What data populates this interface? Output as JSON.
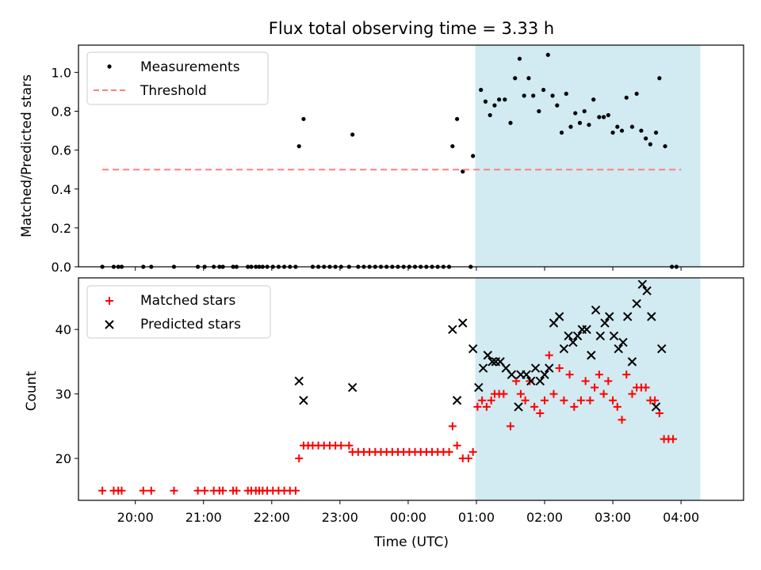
{
  "figure": {
    "title": "Flux total observing time = 3.33 h",
    "xlabel": "Time (UTC)",
    "highlight_color": "#add8e6"
  },
  "chart_data": [
    {
      "type": "scatter",
      "panel": "top",
      "ylabel": "Matched/Predicted stars",
      "xlim": [
        "19:10",
        "04:55"
      ],
      "ylim": [
        0,
        1.14
      ],
      "yticks": [
        0.0,
        0.2,
        0.4,
        0.6,
        0.8,
        1.0
      ],
      "ytick_labels": [
        "0.0",
        "0.2",
        "0.4",
        "0.6",
        "0.8",
        "1.0"
      ],
      "legend": "upper-left",
      "highlight_span": [
        "00:59",
        "04:17"
      ],
      "series": [
        {
          "name": "Measurements",
          "color": "#000000",
          "marker": "dot",
          "points": [
            [
              "19:31",
              0
            ],
            [
              "19:41",
              0
            ],
            [
              "19:45",
              0
            ],
            [
              "19:48",
              0
            ],
            [
              "20:07",
              0
            ],
            [
              "20:14",
              0
            ],
            [
              "20:34",
              0
            ],
            [
              "20:55",
              0
            ],
            [
              "21:01",
              0
            ],
            [
              "21:09",
              0
            ],
            [
              "21:14",
              0
            ],
            [
              "21:17",
              0
            ],
            [
              "21:26",
              0
            ],
            [
              "21:29",
              0
            ],
            [
              "21:39",
              0
            ],
            [
              "21:42",
              0
            ],
            [
              "21:46",
              0
            ],
            [
              "21:49",
              0
            ],
            [
              "21:52",
              0
            ],
            [
              "21:56",
              0
            ],
            [
              "22:01",
              0
            ],
            [
              "22:06",
              0
            ],
            [
              "22:11",
              0
            ],
            [
              "22:16",
              0
            ],
            [
              "22:21",
              0
            ],
            [
              "22:24",
              0.62
            ],
            [
              "22:28",
              0.76
            ],
            [
              "22:36",
              0
            ],
            [
              "22:41",
              0
            ],
            [
              "22:46",
              0
            ],
            [
              "22:51",
              0
            ],
            [
              "22:56",
              0
            ],
            [
              "23:01",
              0
            ],
            [
              "23:08",
              0
            ],
            [
              "23:11",
              0.68
            ],
            [
              "23:16",
              0
            ],
            [
              "23:21",
              0
            ],
            [
              "23:26",
              0
            ],
            [
              "23:31",
              0
            ],
            [
              "23:36",
              0
            ],
            [
              "23:41",
              0
            ],
            [
              "23:46",
              0
            ],
            [
              "23:51",
              0
            ],
            [
              "23:56",
              0
            ],
            [
              "00:01",
              0
            ],
            [
              "00:06",
              0
            ],
            [
              "00:11",
              0
            ],
            [
              "00:16",
              0
            ],
            [
              "00:21",
              0
            ],
            [
              "00:26",
              0
            ],
            [
              "00:31",
              0
            ],
            [
              "00:36",
              0
            ],
            [
              "00:39",
              0.62
            ],
            [
              "00:43",
              0.76
            ],
            [
              "00:48",
              0.49
            ],
            [
              "00:55",
              0
            ],
            [
              "00:57",
              0.57
            ],
            [
              "01:04",
              0.91
            ],
            [
              "01:08",
              0.85
            ],
            [
              "01:12",
              0.78
            ],
            [
              "01:16",
              0.83
            ],
            [
              "01:20",
              0.86
            ],
            [
              "01:25",
              0.86
            ],
            [
              "01:30",
              0.74
            ],
            [
              "01:34",
              0.97
            ],
            [
              "01:38",
              1.07
            ],
            [
              "01:42",
              0.88
            ],
            [
              "01:46",
              0.97
            ],
            [
              "01:50",
              0.88
            ],
            [
              "01:55",
              0.8
            ],
            [
              "01:59",
              0.91
            ],
            [
              "02:03",
              1.09
            ],
            [
              "02:07",
              0.88
            ],
            [
              "02:11",
              0.83
            ],
            [
              "02:15",
              0.69
            ],
            [
              "02:19",
              0.89
            ],
            [
              "02:23",
              0.72
            ],
            [
              "02:27",
              0.79
            ],
            [
              "02:31",
              0.74
            ],
            [
              "02:35",
              0.8
            ],
            [
              "02:39",
              0.73
            ],
            [
              "02:43",
              0.86
            ],
            [
              "02:48",
              0.77
            ],
            [
              "02:52",
              0.77
            ],
            [
              "02:56",
              0.78
            ],
            [
              "03:00",
              0.69
            ],
            [
              "03:04",
              0.72
            ],
            [
              "03:08",
              0.7
            ],
            [
              "03:12",
              0.87
            ],
            [
              "03:17",
              0.72
            ],
            [
              "03:21",
              0.89
            ],
            [
              "03:25",
              0.7
            ],
            [
              "03:29",
              0.66
            ],
            [
              "03:33",
              0.63
            ],
            [
              "03:38",
              0.69
            ],
            [
              "03:41",
              0.97
            ],
            [
              "03:46",
              0.62
            ],
            [
              "03:52",
              0
            ],
            [
              "03:56",
              0
            ]
          ]
        },
        {
          "name": "Threshold",
          "color": "#ff7f7f",
          "style": "dashed",
          "points": [
            [
              "19:31",
              0.5
            ],
            [
              "04:00",
              0.5
            ]
          ]
        }
      ]
    },
    {
      "type": "scatter",
      "panel": "bottom",
      "ylabel": "Count",
      "xlim": [
        "19:10",
        "04:55"
      ],
      "ylim": [
        13.5,
        48
      ],
      "yticks": [
        20,
        30,
        40
      ],
      "ytick_labels": [
        "20",
        "30",
        "40"
      ],
      "xticks": [
        "20:00",
        "21:00",
        "22:00",
        "23:00",
        "00:00",
        "01:00",
        "02:00",
        "03:00",
        "04:00"
      ],
      "xtick_labels": [
        "20:00",
        "21:00",
        "22:00",
        "23:00",
        "00:00",
        "01:00",
        "02:00",
        "03:00",
        "04:00"
      ],
      "legend": "upper-left",
      "highlight_span": [
        "00:59",
        "04:17"
      ],
      "series": [
        {
          "name": "Matched stars",
          "color": "#ff0000",
          "marker": "plus",
          "points": [
            [
              "19:31",
              15
            ],
            [
              "19:41",
              15
            ],
            [
              "19:45",
              15
            ],
            [
              "19:48",
              15
            ],
            [
              "20:07",
              15
            ],
            [
              "20:14",
              15
            ],
            [
              "20:34",
              15
            ],
            [
              "20:55",
              15
            ],
            [
              "21:01",
              15
            ],
            [
              "21:09",
              15
            ],
            [
              "21:14",
              15
            ],
            [
              "21:17",
              15
            ],
            [
              "21:26",
              15
            ],
            [
              "21:29",
              15
            ],
            [
              "21:39",
              15
            ],
            [
              "21:42",
              15
            ],
            [
              "21:46",
              15
            ],
            [
              "21:49",
              15
            ],
            [
              "21:52",
              15
            ],
            [
              "21:56",
              15
            ],
            [
              "22:01",
              15
            ],
            [
              "22:06",
              15
            ],
            [
              "22:11",
              15
            ],
            [
              "22:16",
              15
            ],
            [
              "22:21",
              15
            ],
            [
              "22:24",
              20
            ],
            [
              "22:28",
              22
            ],
            [
              "22:32",
              22
            ],
            [
              "22:36",
              22
            ],
            [
              "22:41",
              22
            ],
            [
              "22:46",
              22
            ],
            [
              "22:51",
              22
            ],
            [
              "22:56",
              22
            ],
            [
              "23:01",
              22
            ],
            [
              "23:08",
              22
            ],
            [
              "23:11",
              21
            ],
            [
              "23:16",
              21
            ],
            [
              "23:21",
              21
            ],
            [
              "23:26",
              21
            ],
            [
              "23:31",
              21
            ],
            [
              "23:36",
              21
            ],
            [
              "23:41",
              21
            ],
            [
              "23:46",
              21
            ],
            [
              "23:51",
              21
            ],
            [
              "23:56",
              21
            ],
            [
              "00:01",
              21
            ],
            [
              "00:06",
              21
            ],
            [
              "00:11",
              21
            ],
            [
              "00:16",
              21
            ],
            [
              "00:21",
              21
            ],
            [
              "00:26",
              21
            ],
            [
              "00:31",
              21
            ],
            [
              "00:36",
              21
            ],
            [
              "00:39",
              25
            ],
            [
              "00:43",
              22
            ],
            [
              "00:48",
              20
            ],
            [
              "00:53",
              20
            ],
            [
              "00:57",
              21
            ],
            [
              "01:01",
              28
            ],
            [
              "01:05",
              29
            ],
            [
              "01:09",
              28
            ],
            [
              "01:13",
              29
            ],
            [
              "01:16",
              30
            ],
            [
              "01:20",
              30
            ],
            [
              "01:24",
              30
            ],
            [
              "01:30",
              25
            ],
            [
              "01:35",
              32
            ],
            [
              "01:39",
              30
            ],
            [
              "01:43",
              29
            ],
            [
              "01:47",
              32
            ],
            [
              "01:51",
              28
            ],
            [
              "01:56",
              27
            ],
            [
              "02:00",
              29
            ],
            [
              "02:04",
              36
            ],
            [
              "02:08",
              30
            ],
            [
              "02:13",
              34
            ],
            [
              "02:17",
              29
            ],
            [
              "02:22",
              33
            ],
            [
              "02:26",
              28
            ],
            [
              "02:32",
              29
            ],
            [
              "02:36",
              32
            ],
            [
              "02:40",
              29
            ],
            [
              "02:44",
              31
            ],
            [
              "02:48",
              33
            ],
            [
              "02:52",
              30
            ],
            [
              "02:56",
              32
            ],
            [
              "03:00",
              29
            ],
            [
              "03:04",
              28
            ],
            [
              "03:08",
              26
            ],
            [
              "03:12",
              33
            ],
            [
              "03:17",
              30
            ],
            [
              "03:21",
              31
            ],
            [
              "03:25",
              31
            ],
            [
              "03:29",
              31
            ],
            [
              "03:33",
              29
            ],
            [
              "03:37",
              29
            ],
            [
              "03:41",
              27
            ],
            [
              "03:45",
              23
            ],
            [
              "03:49",
              23
            ],
            [
              "03:53",
              23
            ]
          ]
        },
        {
          "name": "Predicted stars",
          "color": "#000000",
          "marker": "x",
          "points": [
            [
              "22:24",
              32
            ],
            [
              "22:28",
              29
            ],
            [
              "23:11",
              31
            ],
            [
              "00:39",
              40
            ],
            [
              "00:43",
              29
            ],
            [
              "00:48",
              41
            ],
            [
              "00:57",
              37
            ],
            [
              "01:02",
              31
            ],
            [
              "01:06",
              34
            ],
            [
              "01:10",
              36
            ],
            [
              "01:14",
              35
            ],
            [
              "01:17",
              35
            ],
            [
              "01:21",
              35
            ],
            [
              "01:26",
              34
            ],
            [
              "01:31",
              33
            ],
            [
              "01:37",
              28
            ],
            [
              "01:39",
              33
            ],
            [
              "01:44",
              33
            ],
            [
              "01:48",
              32
            ],
            [
              "01:52",
              34
            ],
            [
              "01:56",
              32
            ],
            [
              "02:00",
              33
            ],
            [
              "02:04",
              34
            ],
            [
              "02:08",
              41
            ],
            [
              "02:13",
              42
            ],
            [
              "02:17",
              37
            ],
            [
              "02:21",
              39
            ],
            [
              "02:25",
              38
            ],
            [
              "02:29",
              39
            ],
            [
              "02:33",
              40
            ],
            [
              "02:37",
              40
            ],
            [
              "02:41",
              36
            ],
            [
              "02:45",
              43
            ],
            [
              "02:49",
              39
            ],
            [
              "02:53",
              41
            ],
            [
              "02:57",
              42
            ],
            [
              "03:01",
              39
            ],
            [
              "03:05",
              37
            ],
            [
              "03:09",
              38
            ],
            [
              "03:13",
              42
            ],
            [
              "03:17",
              35
            ],
            [
              "03:21",
              44
            ],
            [
              "03:26",
              47
            ],
            [
              "03:30",
              46
            ],
            [
              "03:34",
              42
            ],
            [
              "03:38",
              28
            ],
            [
              "03:43",
              37
            ]
          ]
        }
      ]
    }
  ]
}
